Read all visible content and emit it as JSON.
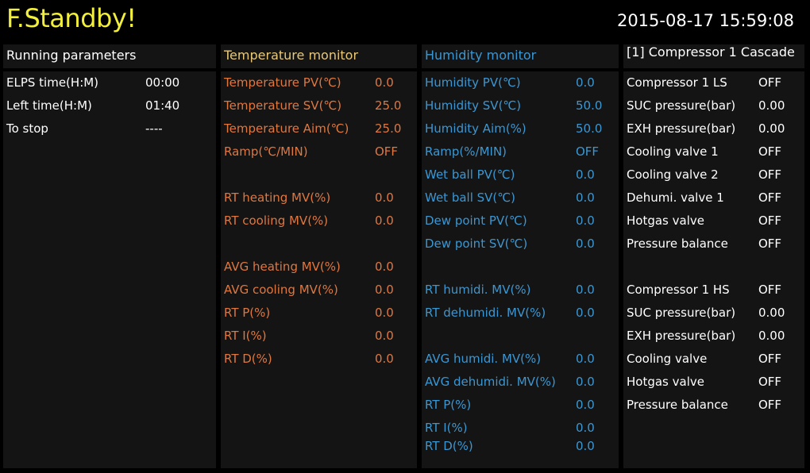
{
  "header": {
    "status_title": "F.Standby!",
    "datetime": "2015-08-17 15:59:08"
  },
  "colors": {
    "title": "#f2ef3c",
    "temperature": "#e0773e",
    "temperature_header": "#e8c878",
    "humidity": "#3b97d3",
    "panel": "#141414"
  },
  "panels": [
    {
      "title": "Running parameters",
      "rows": [
        {
          "label": "ELPS time(H:M)",
          "value": "00:00"
        },
        {
          "label": "Left time(H:M)",
          "value": "01:40"
        },
        {
          "label": "To stop",
          "value": "----"
        }
      ]
    },
    {
      "title": "Temperature monitor",
      "rows": [
        {
          "label": "Temperature PV(℃)",
          "value": "0.0"
        },
        {
          "label": "Temperature SV(℃)",
          "value": "25.0"
        },
        {
          "label": "Temperature Aim(℃)",
          "value": "25.0"
        },
        {
          "label": "Ramp(℃/MIN)",
          "value": "OFF"
        },
        null,
        {
          "label": "RT heating MV(%)",
          "value": "0.0"
        },
        {
          "label": "RT cooling MV(%)",
          "value": "0.0"
        },
        null,
        {
          "label": "AVG heating MV(%)",
          "value": "0.0"
        },
        {
          "label": "AVG cooling MV(%)",
          "value": "0.0"
        },
        {
          "label": "RT P(%)",
          "value": "0.0"
        },
        {
          "label": "RT I(%)",
          "value": "0.0"
        },
        {
          "label": "RT D(%)",
          "value": "0.0"
        }
      ]
    },
    {
      "title": "Humidity monitor",
      "rows": [
        {
          "label": "Humidity PV(℃)",
          "value": "0.0"
        },
        {
          "label": "Humidity SV(℃)",
          "value": "50.0"
        },
        {
          "label": "Humidity Aim(%)",
          "value": "50.0"
        },
        {
          "label": "Ramp(%/MIN)",
          "value": "OFF"
        },
        {
          "label": "Wet ball PV(℃)",
          "value": "0.0"
        },
        {
          "label": "Wet ball SV(℃)",
          "value": "0.0"
        },
        {
          "label": "Dew point PV(℃)",
          "value": "0.0"
        },
        {
          "label": "Dew point SV(℃)",
          "value": "0.0"
        },
        null,
        {
          "label": "RT humidi. MV(%)",
          "value": "0.0"
        },
        {
          "label": "RT dehumidi. MV(%)",
          "value": "0.0"
        },
        null,
        {
          "label": "AVG humidi. MV(%)",
          "value": "0.0"
        },
        {
          "label": "AVG dehumidi. MV(%)",
          "value": "0.0"
        },
        {
          "label": "RT P(%)",
          "value": "0.0"
        },
        {
          "label": "RT I(%)",
          "value": "0.0"
        },
        {
          "label": "RT D(%)",
          "value": "0.0"
        }
      ]
    },
    {
      "title": "[1] Compressor 1 Cascade",
      "rows": [
        {
          "label": "Compressor 1 LS",
          "value": "OFF"
        },
        {
          "label": "SUC pressure(bar)",
          "value": "0.00"
        },
        {
          "label": "EXH pressure(bar)",
          "value": "0.00"
        },
        {
          "label": "Cooling valve 1",
          "value": "OFF"
        },
        {
          "label": "Cooling valve 2",
          "value": "OFF"
        },
        {
          "label": "Dehumi. valve 1",
          "value": "OFF"
        },
        {
          "label": "Hotgas valve",
          "value": "OFF"
        },
        {
          "label": "Pressure balance",
          "value": "OFF"
        },
        null,
        {
          "label": "Compressor 1 HS",
          "value": "OFF"
        },
        {
          "label": "SUC pressure(bar)",
          "value": "0.00"
        },
        {
          "label": "EXH pressure(bar)",
          "value": "0.00"
        },
        {
          "label": "Cooling valve",
          "value": "OFF"
        },
        {
          "label": "Hotgas valve",
          "value": "OFF"
        },
        {
          "label": "Pressure balance",
          "value": "OFF"
        }
      ]
    }
  ]
}
